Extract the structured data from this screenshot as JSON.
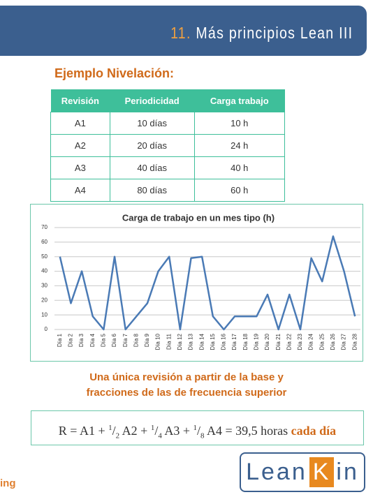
{
  "header": {
    "number": "11.",
    "title": "Más principios Lean III"
  },
  "section_title": "Ejemplo Nivelación:",
  "table": {
    "columns": [
      "Revisión",
      "Periodicidad",
      "Carga trabajo"
    ],
    "rows": [
      [
        "A1",
        "10 días",
        "10 h"
      ],
      [
        "A2",
        "20 días",
        "24 h"
      ],
      [
        "A3",
        "40 días",
        "40 h"
      ],
      [
        "A4",
        "80 días",
        "60 h"
      ]
    ]
  },
  "chart_data": {
    "type": "line",
    "title": "Carga de trabajo en un mes tipo (h)",
    "categories": [
      "Día 1",
      "Día 2",
      "Día 3",
      "Día 4",
      "Día 5",
      "Día 6",
      "Día 7",
      "Día 8",
      "Día 9",
      "Día 10",
      "Día 11",
      "Día 12",
      "Día 13",
      "Día 14",
      "Día 15",
      "Día 16",
      "Día 17",
      "Día 18",
      "Día 19",
      "Día 20",
      "Día 21",
      "Día 22",
      "Día 23",
      "Día 24",
      "Día 25",
      "Día 26",
      "Día 27",
      "Día 28"
    ],
    "values": [
      50,
      18,
      40,
      9,
      0,
      50,
      0,
      9,
      18,
      40,
      50,
      0,
      49,
      50,
      9,
      0,
      9,
      9,
      9,
      24,
      0,
      24,
      0,
      49,
      33,
      64,
      40,
      9
    ],
    "color": "#4a7ab5",
    "ylim": [
      0,
      70
    ],
    "yticks": [
      0,
      10,
      20,
      30,
      40,
      50,
      60,
      70
    ],
    "grid": true
  },
  "note": [
    "Una única revisión a partir de la base y",
    "fracciones de las de frecuencia superior"
  ],
  "formula": {
    "start": "R = A1 +",
    "terms": [
      {
        "num": "1",
        "den": "2",
        "text": "A2 +"
      },
      {
        "num": "1",
        "den": "4",
        "text": "A3 +"
      },
      {
        "num": "1",
        "den": "8",
        "text": "A4 = 39,5 horas"
      }
    ],
    "highlight": "cada día"
  },
  "footer_left": "ing",
  "logo": {
    "a": "Lean",
    "b": "K",
    "c": "in"
  }
}
